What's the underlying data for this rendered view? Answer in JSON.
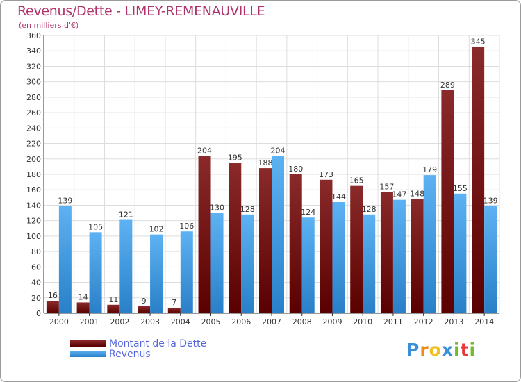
{
  "header": {
    "title": "Revenus/Dette - LIMEY-REMENAUVILLE",
    "subtitle": "(en milliers d'€)"
  },
  "chart_data": {
    "type": "bar",
    "categories": [
      "2000",
      "2001",
      "2002",
      "2003",
      "2004",
      "2005",
      "2006",
      "2007",
      "2008",
      "2009",
      "2010",
      "2011",
      "2012",
      "2013",
      "2014"
    ],
    "series": [
      {
        "name": "Montant de la Dette",
        "values": [
          16,
          14,
          11,
          9,
          7,
          204,
          195,
          188,
          180,
          173,
          165,
          157,
          148,
          289,
          345
        ],
        "color": "#7a1010"
      },
      {
        "name": "Revenus",
        "values": [
          139,
          105,
          121,
          102,
          106,
          130,
          128,
          204,
          124,
          144,
          128,
          147,
          179,
          155,
          139
        ],
        "color": "#3d9ae6"
      }
    ],
    "ylim": [
      0,
      360
    ],
    "ytick_step": 20,
    "grid": true,
    "legend_position": "bottom-left"
  },
  "logo": {
    "letters": [
      "P",
      "r",
      "o",
      "x",
      "i",
      "t",
      "i"
    ],
    "colors": [
      "#3a8fd9",
      "#f08a1c",
      "#f0c020",
      "#3a8fd9",
      "#78b82a",
      "#e83a3a",
      "#78b82a"
    ]
  }
}
